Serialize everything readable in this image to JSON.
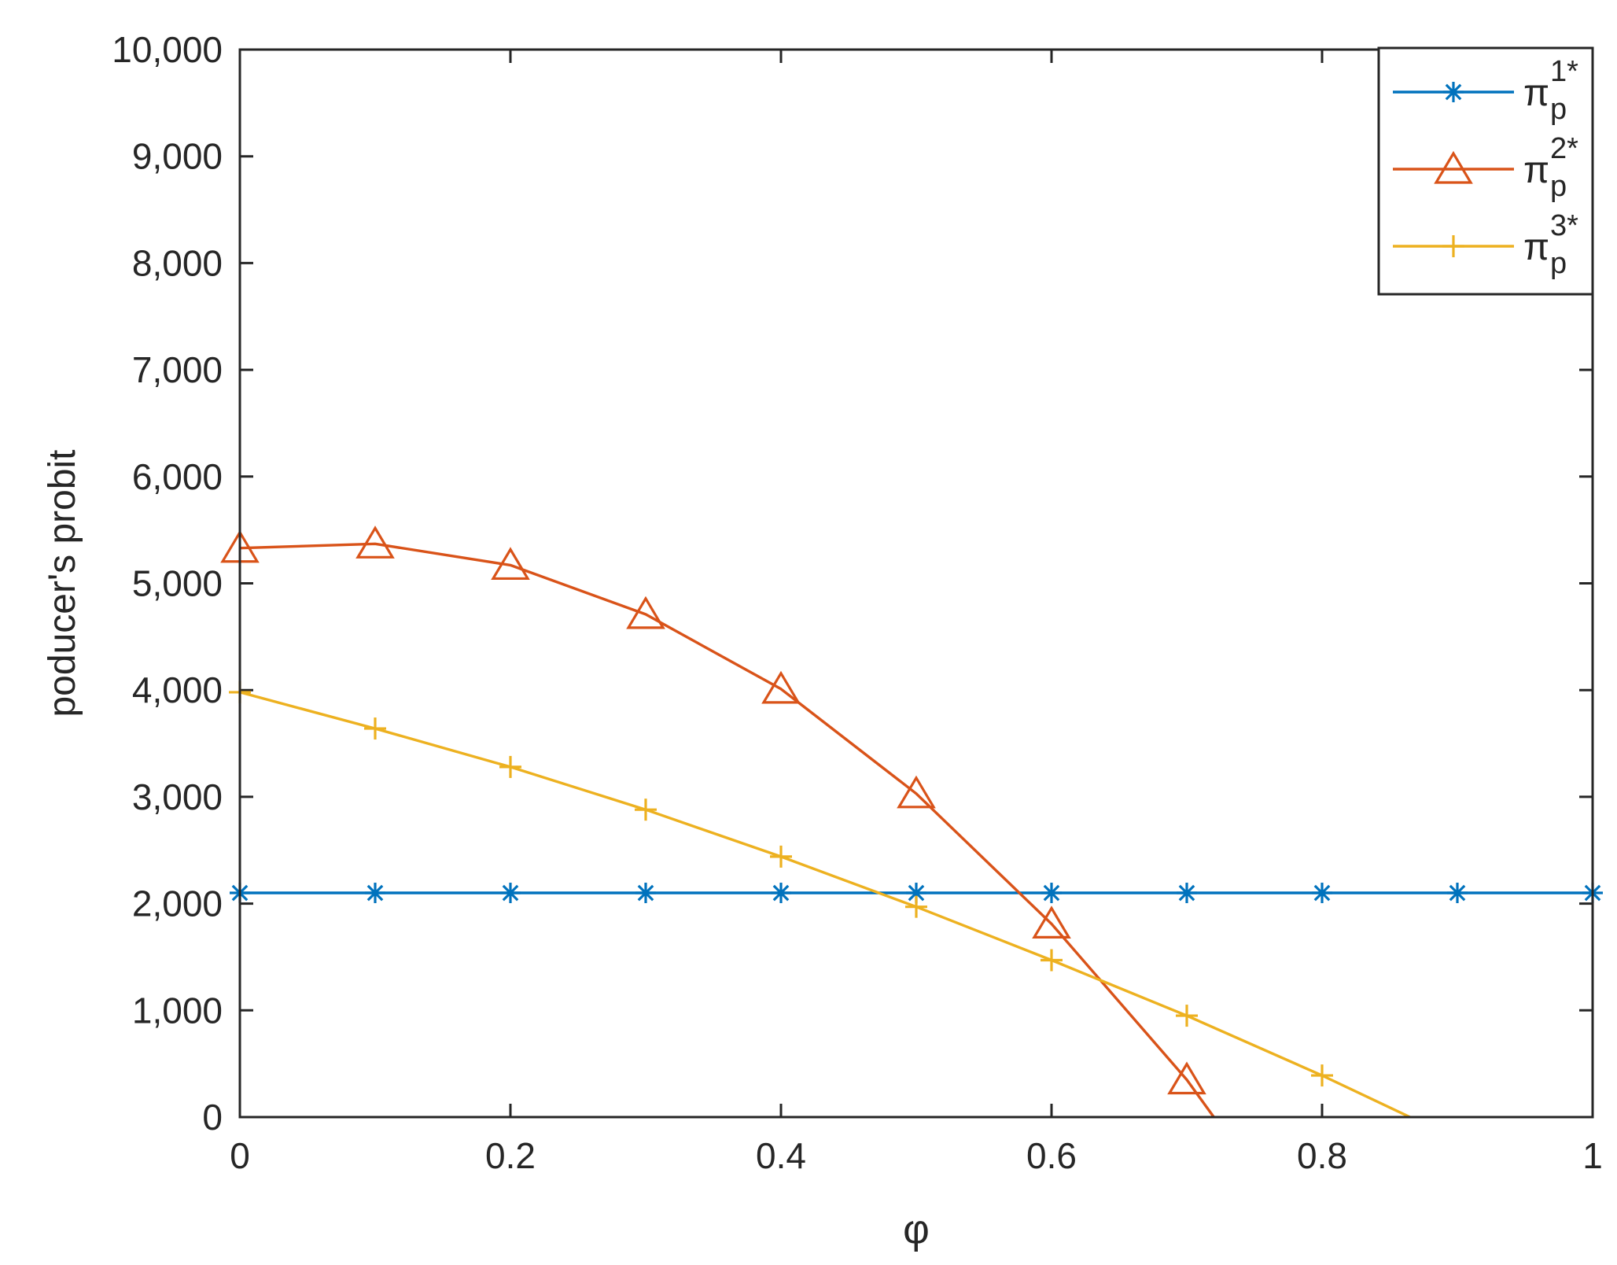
{
  "chart_data": {
    "type": "line",
    "title": "",
    "xlabel": "φ",
    "ylabel": "poducer's probit",
    "xlim": [
      0,
      1
    ],
    "ylim": [
      0,
      10000
    ],
    "x_ticks": [
      0,
      0.2,
      0.4,
      0.6,
      0.8,
      1
    ],
    "x_tick_labels": [
      "0",
      "0.2",
      "0.4",
      "0.6",
      "0.8",
      "1"
    ],
    "y_ticks": [
      0,
      1000,
      2000,
      3000,
      4000,
      5000,
      6000,
      7000,
      8000,
      9000,
      10000
    ],
    "y_tick_labels": [
      "0",
      "1,000",
      "2,000",
      "3,000",
      "4,000",
      "5,000",
      "6,000",
      "7,000",
      "8,000",
      "9,000",
      "10,000"
    ],
    "grid": false,
    "legend_position": "top-right",
    "series": [
      {
        "legend_base": "π",
        "legend_sup": "1*",
        "legend_sub": "p",
        "color": "#0072BD",
        "marker": "asterisk",
        "x": [
          0,
          0.1,
          0.2,
          0.3,
          0.4,
          0.5,
          0.6,
          0.7,
          0.8,
          0.9,
          1.0
        ],
        "y": [
          2100,
          2100,
          2100,
          2100,
          2100,
          2100,
          2100,
          2100,
          2100,
          2100,
          2100
        ],
        "marker_x": [
          0,
          0.1,
          0.2,
          0.3,
          0.4,
          0.5,
          0.6,
          0.7,
          0.8,
          0.9,
          1.0
        ],
        "marker_y": [
          2100,
          2100,
          2100,
          2100,
          2100,
          2100,
          2100,
          2100,
          2100,
          2100,
          2100
        ]
      },
      {
        "legend_base": "π",
        "legend_sup": "2*",
        "legend_sub": "p",
        "color": "#D95319",
        "marker": "triangle",
        "x": [
          0,
          0.1,
          0.2,
          0.3,
          0.4,
          0.5,
          0.6,
          0.7,
          0.72
        ],
        "y": [
          5330,
          5370,
          5170,
          4710,
          4010,
          3030,
          1810,
          350,
          0
        ],
        "marker_x": [
          0,
          0.1,
          0.2,
          0.3,
          0.4,
          0.5,
          0.6,
          0.7
        ],
        "marker_y": [
          5330,
          5370,
          5170,
          4710,
          4010,
          3030,
          1810,
          350
        ]
      },
      {
        "legend_base": "π",
        "legend_sup": "3*",
        "legend_sub": "p",
        "color": "#EDB120",
        "marker": "plus",
        "x": [
          0,
          0.1,
          0.2,
          0.3,
          0.4,
          0.5,
          0.6,
          0.7,
          0.8,
          0.865
        ],
        "y": [
          3980,
          3640,
          3280,
          2880,
          2440,
          1970,
          1470,
          950,
          390,
          0
        ],
        "marker_x": [
          0,
          0.1,
          0.2,
          0.3,
          0.4,
          0.5,
          0.6,
          0.7,
          0.8
        ],
        "marker_y": [
          3980,
          3640,
          3280,
          2880,
          2440,
          1970,
          1470,
          950,
          390
        ]
      }
    ]
  }
}
